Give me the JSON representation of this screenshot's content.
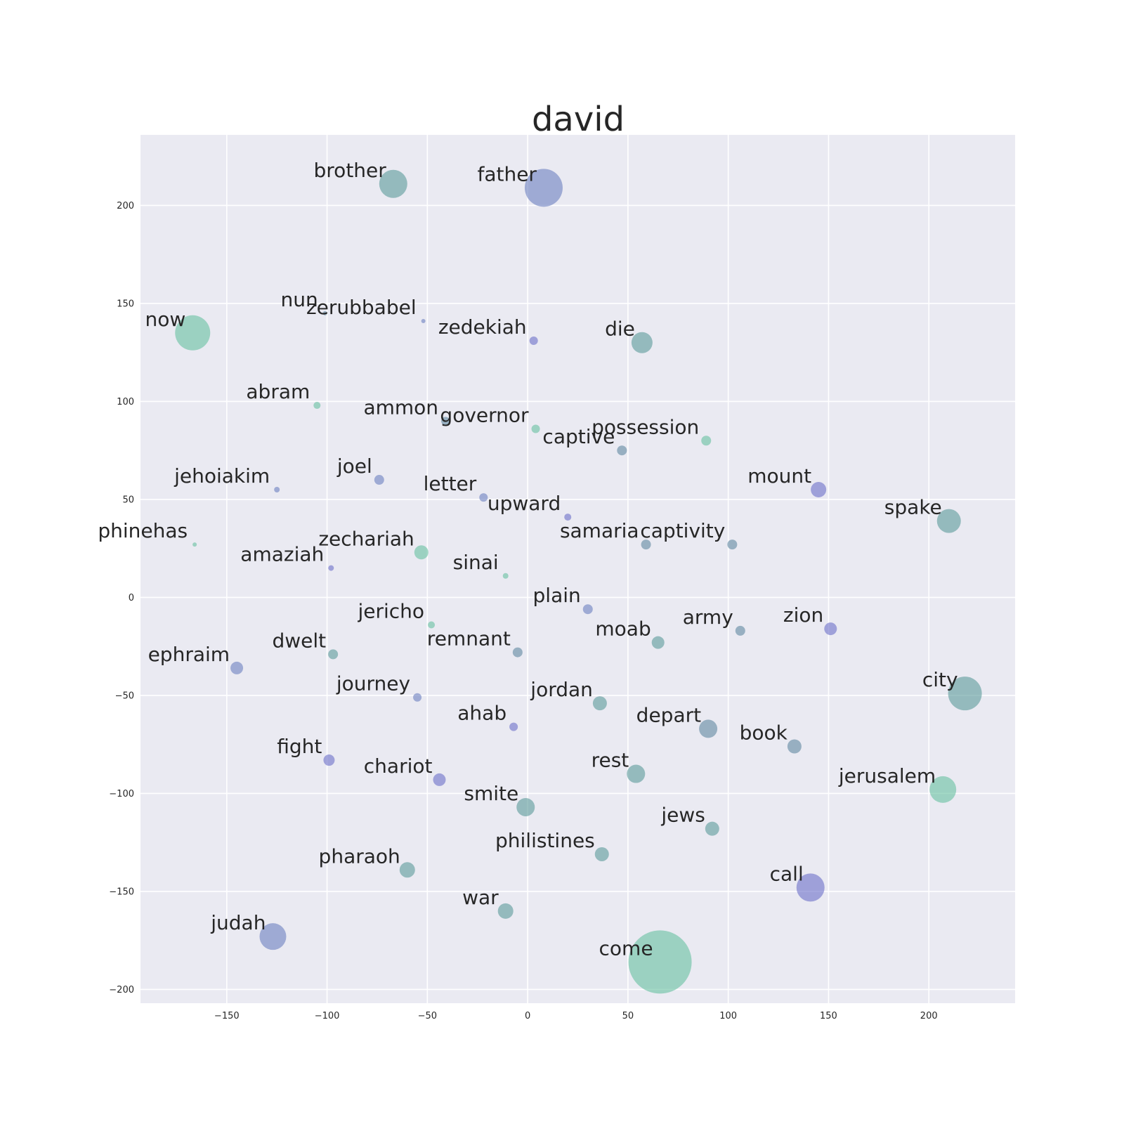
{
  "chart_data": {
    "type": "scatter",
    "title": "david",
    "xlabel": "",
    "ylabel": "",
    "xlim": [
      -193,
      243
    ],
    "ylim": [
      -207,
      236
    ],
    "xticks": [
      -150,
      -100,
      -50,
      0,
      50,
      100,
      150,
      200
    ],
    "yticks": [
      -200,
      -150,
      -100,
      -50,
      0,
      50,
      100,
      150,
      200
    ],
    "xtick_labels": [
      "−150",
      "−100",
      "−50",
      "0",
      "50",
      "100",
      "150",
      "200"
    ],
    "ytick_labels": [
      "−200",
      "−150",
      "−100",
      "−50",
      "0",
      "50",
      "100",
      "150",
      "200"
    ],
    "background": "#eaeaf2",
    "palette": {
      "blue": "#6b7fc0",
      "slate": "#5f87a0",
      "teal": "#5a9a9a",
      "green": "#66bfa0",
      "violet": "#6a6ec8"
    },
    "points": [
      {
        "label": "brother",
        "x": -67,
        "y": 211,
        "size": 20,
        "color": "teal"
      },
      {
        "label": "father",
        "x": 8,
        "y": 209,
        "size": 27,
        "color": "blue"
      },
      {
        "label": "nun",
        "x": -101,
        "y": 145,
        "size": 3,
        "color": "slate"
      },
      {
        "label": "zerubbabel",
        "x": -52,
        "y": 141,
        "size": 3,
        "color": "blue"
      },
      {
        "label": "now",
        "x": -167,
        "y": 135,
        "size": 25,
        "color": "green"
      },
      {
        "label": "zedekiah",
        "x": 3,
        "y": 131,
        "size": 6,
        "color": "violet"
      },
      {
        "label": "die",
        "x": 57,
        "y": 130,
        "size": 15,
        "color": "teal"
      },
      {
        "label": "abram",
        "x": -105,
        "y": 98,
        "size": 5,
        "color": "green"
      },
      {
        "label": "ammon",
        "x": -41,
        "y": 90,
        "size": 6,
        "color": "slate"
      },
      {
        "label": "governor",
        "x": 4,
        "y": 86,
        "size": 6,
        "color": "green"
      },
      {
        "label": "possession",
        "x": 89,
        "y": 80,
        "size": 7,
        "color": "green"
      },
      {
        "label": "captive",
        "x": 47,
        "y": 75,
        "size": 7,
        "color": "slate"
      },
      {
        "label": "jehoiakim",
        "x": -125,
        "y": 55,
        "size": 4,
        "color": "blue"
      },
      {
        "label": "joel",
        "x": -74,
        "y": 60,
        "size": 7,
        "color": "blue"
      },
      {
        "label": "letter",
        "x": -22,
        "y": 51,
        "size": 6,
        "color": "blue"
      },
      {
        "label": "mount",
        "x": 145,
        "y": 55,
        "size": 11,
        "color": "violet"
      },
      {
        "label": "upward",
        "x": 20,
        "y": 41,
        "size": 5,
        "color": "violet"
      },
      {
        "label": "spake",
        "x": 210,
        "y": 39,
        "size": 17,
        "color": "teal"
      },
      {
        "label": "phinehas",
        "x": -166,
        "y": 27,
        "size": 3,
        "color": "green"
      },
      {
        "label": "samaria",
        "x": 59,
        "y": 27,
        "size": 7,
        "color": "slate"
      },
      {
        "label": "captivity",
        "x": 102,
        "y": 27,
        "size": 7,
        "color": "slate"
      },
      {
        "label": "zechariah",
        "x": -53,
        "y": 23,
        "size": 10,
        "color": "green"
      },
      {
        "label": "amaziah",
        "x": -98,
        "y": 15,
        "size": 4,
        "color": "violet"
      },
      {
        "label": "sinai",
        "x": -11,
        "y": 11,
        "size": 4,
        "color": "green"
      },
      {
        "label": "plain",
        "x": 30,
        "y": -6,
        "size": 7,
        "color": "blue"
      },
      {
        "label": "jericho",
        "x": -48,
        "y": -14,
        "size": 5,
        "color": "green"
      },
      {
        "label": "army",
        "x": 106,
        "y": -17,
        "size": 7,
        "color": "slate"
      },
      {
        "label": "zion",
        "x": 151,
        "y": -16,
        "size": 9,
        "color": "violet"
      },
      {
        "label": "moab",
        "x": 65,
        "y": -23,
        "size": 9,
        "color": "teal"
      },
      {
        "label": "remnant",
        "x": -5,
        "y": -28,
        "size": 7,
        "color": "slate"
      },
      {
        "label": "dwelt",
        "x": -97,
        "y": -29,
        "size": 7,
        "color": "teal"
      },
      {
        "label": "ephraim",
        "x": -145,
        "y": -36,
        "size": 9,
        "color": "blue"
      },
      {
        "label": "city",
        "x": 218,
        "y": -49,
        "size": 24,
        "color": "teal"
      },
      {
        "label": "journey",
        "x": -55,
        "y": -51,
        "size": 6,
        "color": "blue"
      },
      {
        "label": "jordan",
        "x": 36,
        "y": -54,
        "size": 10,
        "color": "teal"
      },
      {
        "label": "ahab",
        "x": -7,
        "y": -66,
        "size": 6,
        "color": "violet"
      },
      {
        "label": "depart",
        "x": 90,
        "y": -67,
        "size": 13,
        "color": "slate"
      },
      {
        "label": "book",
        "x": 133,
        "y": -76,
        "size": 10,
        "color": "slate"
      },
      {
        "label": "fight",
        "x": -99,
        "y": -83,
        "size": 8,
        "color": "violet"
      },
      {
        "label": "chariot",
        "x": -44,
        "y": -93,
        "size": 9,
        "color": "violet"
      },
      {
        "label": "rest",
        "x": 54,
        "y": -90,
        "size": 13,
        "color": "teal"
      },
      {
        "label": "jerusalem",
        "x": 207,
        "y": -98,
        "size": 19,
        "color": "green"
      },
      {
        "label": "smite",
        "x": -1,
        "y": -107,
        "size": 13,
        "color": "teal"
      },
      {
        "label": "jews",
        "x": 92,
        "y": -118,
        "size": 10,
        "color": "teal"
      },
      {
        "label": "philistines",
        "x": 37,
        "y": -131,
        "size": 10,
        "color": "teal"
      },
      {
        "label": "pharaoh",
        "x": -60,
        "y": -139,
        "size": 11,
        "color": "teal"
      },
      {
        "label": "call",
        "x": 141,
        "y": -148,
        "size": 20,
        "color": "violet"
      },
      {
        "label": "war",
        "x": -11,
        "y": -160,
        "size": 11,
        "color": "teal"
      },
      {
        "label": "judah",
        "x": -127,
        "y": -173,
        "size": 19,
        "color": "blue"
      },
      {
        "label": "come",
        "x": 66,
        "y": -186,
        "size": 45,
        "color": "green"
      }
    ]
  }
}
